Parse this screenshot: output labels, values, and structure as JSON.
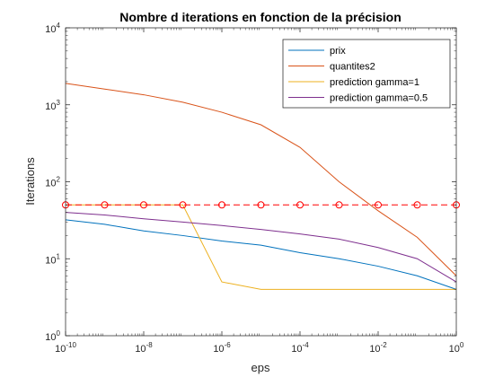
{
  "chart_data": {
    "type": "line",
    "title": "Nombre d iterations en fonction de la précision",
    "xlabel": "eps",
    "ylabel": "Iterations",
    "xscale": "log",
    "yscale": "log",
    "xlim": [
      1e-10,
      1
    ],
    "ylim": [
      1,
      10000
    ],
    "x_ticks": [
      {
        "value": 1e-10,
        "base": "10",
        "exp": "-10"
      },
      {
        "value": 1e-08,
        "base": "10",
        "exp": "-8"
      },
      {
        "value": 1e-06,
        "base": "10",
        "exp": "-6"
      },
      {
        "value": 0.0001,
        "base": "10",
        "exp": "-4"
      },
      {
        "value": 0.01,
        "base": "10",
        "exp": "-2"
      },
      {
        "value": 1,
        "base": "10",
        "exp": "0"
      }
    ],
    "y_ticks": [
      {
        "value": 1,
        "base": "10",
        "exp": "0"
      },
      {
        "value": 10,
        "base": "10",
        "exp": "1"
      },
      {
        "value": 100,
        "base": "10",
        "exp": "2"
      },
      {
        "value": 1000,
        "base": "10",
        "exp": "3"
      },
      {
        "value": 10000,
        "base": "10",
        "exp": "4"
      }
    ],
    "legend_position": "top-right",
    "grid": false,
    "x": [
      1e-10,
      1e-09,
      1e-08,
      1e-07,
      1e-06,
      1e-05,
      0.0001,
      0.001,
      0.01,
      0.1,
      1
    ],
    "series": [
      {
        "name": "prix",
        "color": "#0072BD",
        "style": "solid",
        "values": [
          32,
          28,
          23,
          20,
          17,
          15,
          12,
          10,
          8,
          6,
          4
        ]
      },
      {
        "name": "quantites2",
        "color": "#D95319",
        "style": "solid",
        "values": [
          1900,
          1600,
          1350,
          1080,
          800,
          550,
          280,
          100,
          42,
          19,
          6
        ]
      },
      {
        "name": "prediction gamma=1",
        "color": "#EDB120",
        "style": "solid",
        "values": [
          50,
          50,
          50,
          50,
          5,
          4,
          4,
          4,
          4,
          4,
          4
        ]
      },
      {
        "name": "prediction gamma=0.5",
        "color": "#7E2F8E",
        "style": "solid",
        "values": [
          40,
          37,
          33,
          30,
          27,
          24,
          21,
          18,
          14,
          10,
          5
        ]
      },
      {
        "name": "",
        "color": "#FF0000",
        "style": "dashed",
        "marker": "circle",
        "in_legend": false,
        "values": [
          50,
          50,
          50,
          50,
          50,
          50,
          50,
          50,
          50,
          50,
          50
        ]
      }
    ]
  }
}
